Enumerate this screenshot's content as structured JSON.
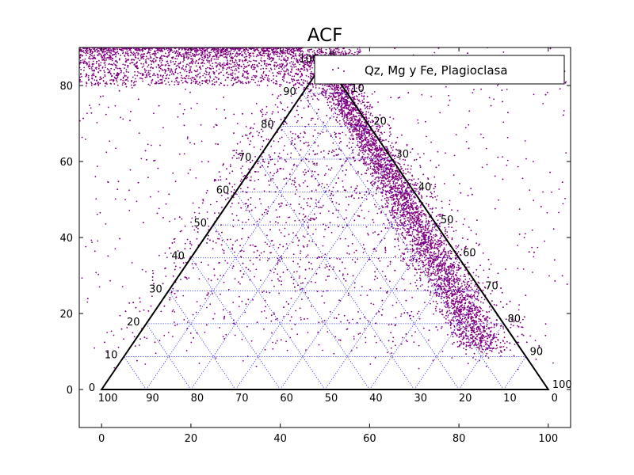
{
  "chart_data": {
    "type": "scatter",
    "title": "ACF",
    "xlim": [
      -5,
      105
    ],
    "ylim": [
      -10,
      90
    ],
    "x_ticks": [
      0,
      20,
      40,
      60,
      80,
      100
    ],
    "y_ticks": [
      0,
      20,
      40,
      60,
      80
    ],
    "grid": false,
    "legend": {
      "placement": "top-right",
      "entries": [
        "Qz, Mg y Fe, Plagioclasa"
      ]
    },
    "colors": {
      "series": "#800080",
      "triangle": "#000000",
      "ternary_grid": "#0000ff"
    },
    "series": [
      {
        "name": "Qz, Mg y Fe, Plagioclasa",
        "marker": "point",
        "clusters": [
          {
            "shape": "band",
            "x": [
              -5,
              58
            ],
            "y": [
              80,
              90
            ],
            "weight": 0.3
          },
          {
            "shape": "line",
            "from": [
              50,
              86
            ],
            "to": [
              86,
              11
            ],
            "spread": 2.5,
            "weight": 0.4
          },
          {
            "shape": "scatter",
            "x": [
              -5,
              105
            ],
            "y": [
              5,
              90
            ],
            "weight": 0.3
          }
        ]
      }
    ],
    "ternary": {
      "vertices": [
        [
          0,
          0
        ],
        [
          100,
          0
        ],
        [
          50,
          86.6
        ]
      ],
      "left_edge_labels": [
        "0",
        "10",
        "20",
        "30",
        "40",
        "50",
        "60",
        "70",
        "80",
        "90",
        "100"
      ],
      "bottom_edge_labels": [
        "100",
        "90",
        "80",
        "70",
        "60",
        "50",
        "40",
        "30",
        "20",
        "10",
        "0"
      ],
      "right_edge_labels": [
        "0",
        "10",
        "20",
        "30",
        "40",
        "50",
        "60",
        "70",
        "80",
        "90",
        "100"
      ]
    }
  }
}
